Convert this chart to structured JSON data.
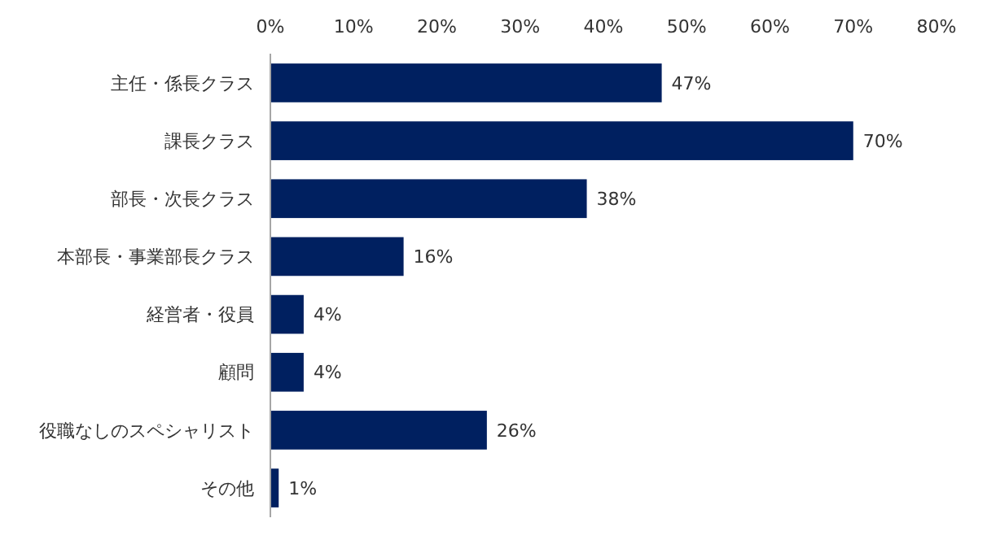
{
  "chart_data": {
    "type": "bar",
    "orientation": "horizontal",
    "categories": [
      "主任・係長クラス",
      "課長クラス",
      "部長・次長クラス",
      "本部長・事業部長クラス",
      "経営者・役員",
      "顧問",
      "役職なしのスペシャリスト",
      "その他"
    ],
    "values": [
      47,
      70,
      38,
      16,
      4,
      4,
      26,
      1
    ],
    "value_labels": [
      "47%",
      "70%",
      "38%",
      "16%",
      "4%",
      "4%",
      "26%",
      "1%"
    ],
    "color": "#002060",
    "xlim": [
      0,
      80
    ],
    "xticks": [
      {
        "value": 0,
        "label": "0%"
      },
      {
        "value": 10,
        "label": "10%"
      },
      {
        "value": 20,
        "label": "20%"
      },
      {
        "value": 30,
        "label": "30%"
      },
      {
        "value": 40,
        "label": "40%"
      },
      {
        "value": 50,
        "label": "50%"
      },
      {
        "value": 60,
        "label": "60%"
      },
      {
        "value": 70,
        "label": "70%"
      },
      {
        "value": 80,
        "label": "80%"
      }
    ],
    "grid": false
  }
}
